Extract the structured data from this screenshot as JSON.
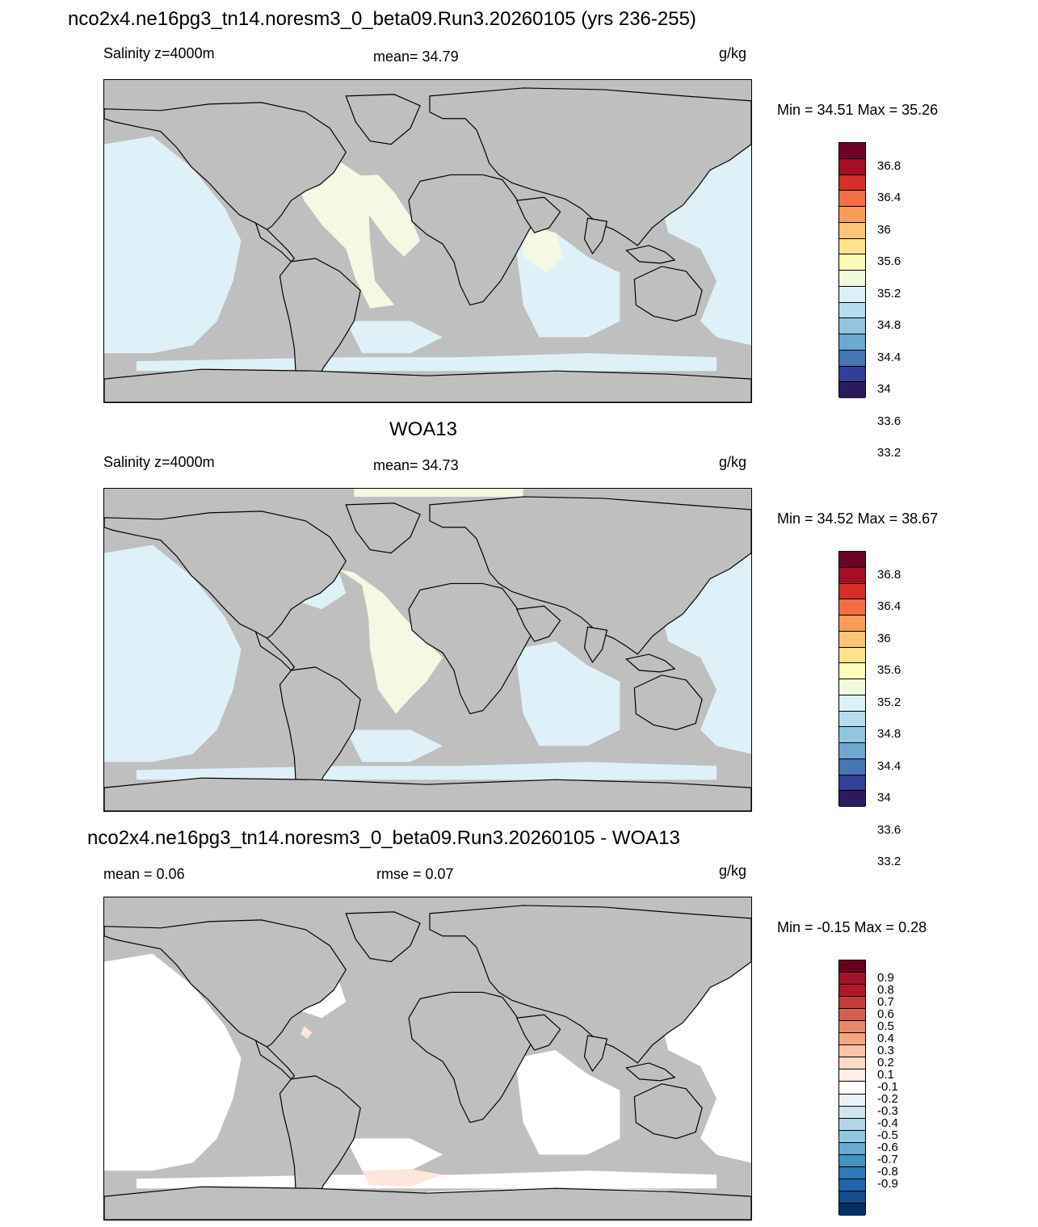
{
  "figure_title": "nco2x4.ne16pg3_tn14.noresm3_0_beta09.Run3.20260105 (yrs 236-255)",
  "panels": [
    {
      "id": "model",
      "heading": "",
      "left_label": "Salinity z=4000m",
      "center_label": "mean=  34.79",
      "units": "g/kg",
      "minmax": "Min =  34.51 Max =  35.26",
      "ocean_color": "#dff1f8",
      "highlight_color": "#f3f9e2",
      "colorbar": {
        "colors": [
          "#6e0026",
          "#a50f26",
          "#d62f26",
          "#f46d43",
          "#f99c5a",
          "#fdc576",
          "#fee290",
          "#fefbb8",
          "#f1f9dc",
          "#dbf0f7",
          "#b7dced",
          "#92c5de",
          "#6ea7cf",
          "#4875b4",
          "#313f96",
          "#2b1b5e"
        ],
        "labels": [
          "36.8",
          "36.4",
          "36",
          "35.6",
          "35.2",
          "34.8",
          "34.4",
          "34",
          "33.6",
          "33.2"
        ]
      }
    },
    {
      "id": "obs",
      "heading": "WOA13",
      "left_label": "Salinity z=4000m",
      "center_label": "mean=  34.73",
      "units": "g/kg",
      "minmax": "Min =  34.52 Max =  38.67",
      "ocean_color": "#dff1f8",
      "highlight_color": "#f3f9e2",
      "colorbar": {
        "colors": [
          "#6e0026",
          "#a50f26",
          "#d62f26",
          "#f46d43",
          "#f99c5a",
          "#fdc576",
          "#fee290",
          "#fefbb8",
          "#f1f9dc",
          "#dbf0f7",
          "#b7dced",
          "#92c5de",
          "#6ea7cf",
          "#4875b4",
          "#313f96",
          "#2b1b5e"
        ],
        "labels": [
          "36.8",
          "36.4",
          "36",
          "35.6",
          "35.2",
          "34.8",
          "34.4",
          "34",
          "33.6",
          "33.2"
        ]
      }
    },
    {
      "id": "diff",
      "heading": "nco2x4.ne16pg3_tn14.noresm3_0_beta09.Run3.20260105 - WOA13",
      "left_label": "mean =   0.06",
      "center_label": "rmse =   0.07",
      "units": "g/kg",
      "minmax": "Min =  -0.15 Max =   0.28",
      "ocean_color": "#ffffff",
      "highlight_color": "#fde6da",
      "colorbar": {
        "colors": [
          "#67001f",
          "#a3132b",
          "#b2182b",
          "#c53c3c",
          "#d6604d",
          "#e8896a",
          "#f4a582",
          "#f9c4a8",
          "#fddbc7",
          "#fdeee6",
          "#ffffff",
          "#eaf2f8",
          "#d1e5f0",
          "#b4d5e7",
          "#92c5de",
          "#6aaad0",
          "#4393c3",
          "#3079b6",
          "#2166ac",
          "#134d8e",
          "#053061"
        ],
        "labels": [
          "0.9",
          "0.8",
          "0.7",
          "0.6",
          "0.5",
          "0.4",
          "0.3",
          "0.2",
          "0.1",
          "-0.1",
          "-0.2",
          "-0.3",
          "-0.4",
          "-0.5",
          "-0.6",
          "-0.7",
          "-0.8",
          "-0.9"
        ]
      }
    }
  ]
}
